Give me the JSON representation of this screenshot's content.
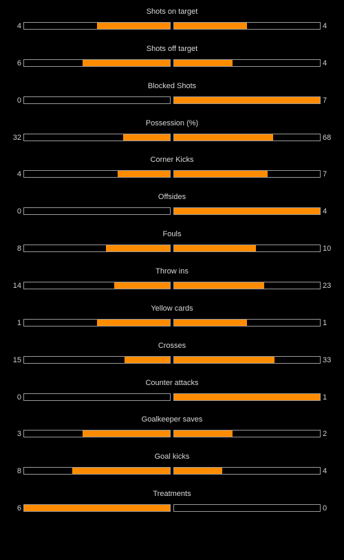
{
  "colors": {
    "fill": "#ff8c00",
    "border": "#9a9a9a",
    "background": "#000000"
  },
  "stats": [
    {
      "label": "Shots on target",
      "home": "4",
      "away": "4",
      "home_pct": 50,
      "away_pct": 50
    },
    {
      "label": "Shots off target",
      "home": "6",
      "away": "4",
      "home_pct": 60,
      "away_pct": 40
    },
    {
      "label": "Blocked Shots",
      "home": "0",
      "away": "7",
      "home_pct": 0,
      "away_pct": 100
    },
    {
      "label": "Possession (%)",
      "home": "32",
      "away": "68",
      "home_pct": 32,
      "away_pct": 68
    },
    {
      "label": "Corner Kicks",
      "home": "4",
      "away": "7",
      "home_pct": 36,
      "away_pct": 64
    },
    {
      "label": "Offsides",
      "home": "0",
      "away": "4",
      "home_pct": 0,
      "away_pct": 100
    },
    {
      "label": "Fouls",
      "home": "8",
      "away": "10",
      "home_pct": 44,
      "away_pct": 56
    },
    {
      "label": "Throw ins",
      "home": "14",
      "away": "23",
      "home_pct": 38,
      "away_pct": 62
    },
    {
      "label": "Yellow cards",
      "home": "1",
      "away": "1",
      "home_pct": 50,
      "away_pct": 50
    },
    {
      "label": "Crosses",
      "home": "15",
      "away": "33",
      "home_pct": 31,
      "away_pct": 69
    },
    {
      "label": "Counter attacks",
      "home": "0",
      "away": "1",
      "home_pct": 0,
      "away_pct": 100
    },
    {
      "label": "Goalkeeper saves",
      "home": "3",
      "away": "2",
      "home_pct": 60,
      "away_pct": 40
    },
    {
      "label": "Goal kicks",
      "home": "8",
      "away": "4",
      "home_pct": 67,
      "away_pct": 33
    },
    {
      "label": "Treatments",
      "home": "6",
      "away": "0",
      "home_pct": 100,
      "away_pct": 0
    }
  ]
}
